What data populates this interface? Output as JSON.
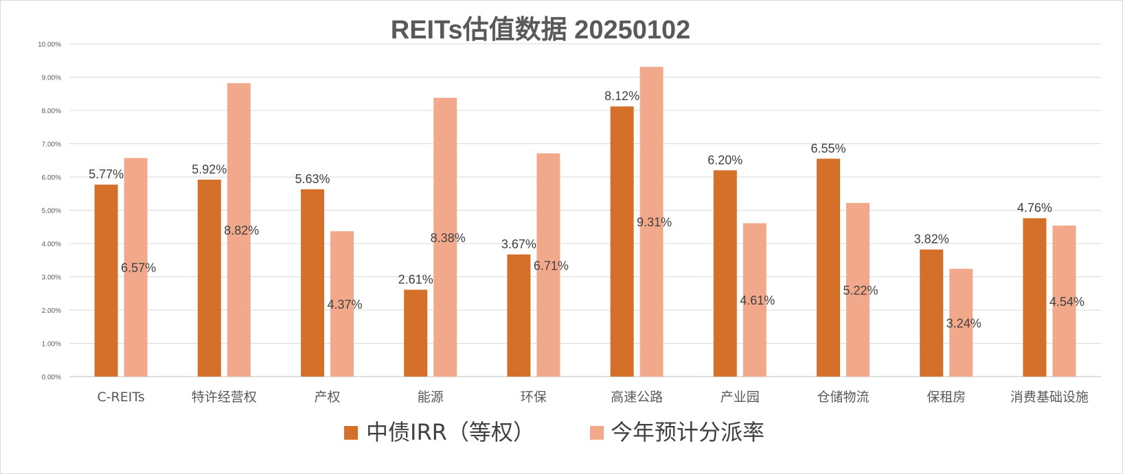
{
  "chart_data": {
    "type": "bar",
    "title": "REITs估值数据 20250102",
    "categories": [
      "C-REITs",
      "特许经营权",
      "产权",
      "能源",
      "环保",
      "高速公路",
      "产业园",
      "仓储物流",
      "保租房",
      "消费基础设施"
    ],
    "series": [
      {
        "name": "中债IRR（等权）",
        "values": [
          5.77,
          5.92,
          5.63,
          2.61,
          3.67,
          8.12,
          6.2,
          6.55,
          3.82,
          4.76
        ],
        "labels": [
          "5.77%",
          "5.92%",
          "5.63%",
          "2.61%",
          "3.67%",
          "8.12%",
          "6.20%",
          "6.55%",
          "3.82%",
          "4.76%"
        ],
        "color": "#D4702A"
      },
      {
        "name": "今年预计分派率",
        "values": [
          6.57,
          8.82,
          4.37,
          8.38,
          6.71,
          9.31,
          4.61,
          5.22,
          3.24,
          4.54
        ],
        "labels": [
          "6.57%",
          "8.82%",
          "4.37%",
          "8.38%",
          "6.71%",
          "9.31%",
          "4.61%",
          "5.22%",
          "3.24%",
          "4.54%"
        ],
        "color": "#F2A98B"
      }
    ],
    "ylim": [
      0,
      10
    ],
    "yticks": [
      "0.00%",
      "1.00%",
      "2.00%",
      "3.00%",
      "4.00%",
      "5.00%",
      "6.00%",
      "7.00%",
      "8.00%",
      "9.00%",
      "10.00%"
    ],
    "grid": true,
    "legend": "bottom"
  }
}
